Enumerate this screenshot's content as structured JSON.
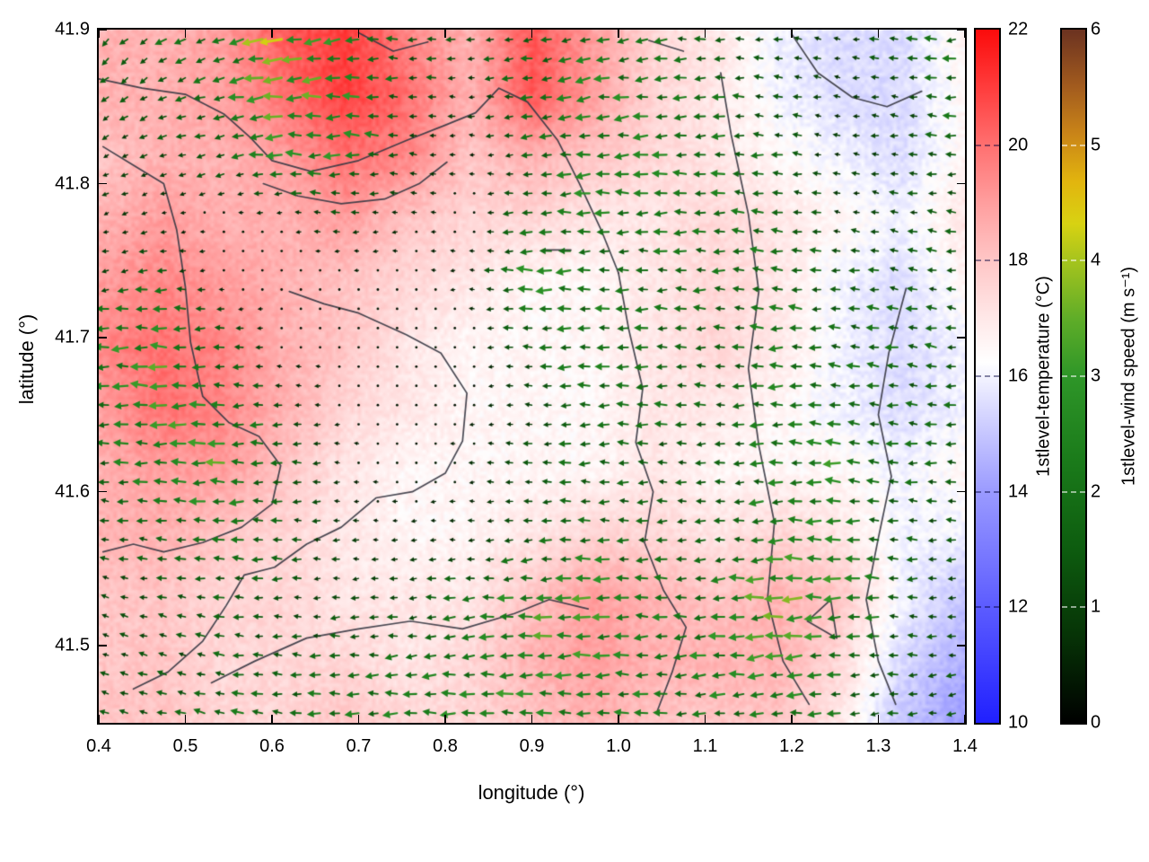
{
  "figure": {
    "background": "#ffffff",
    "boundary_color": "#3a3a44"
  },
  "axes": {
    "xlabel": "longitude (°)",
    "ylabel": "latitude (°)",
    "x_ticks": [
      "0.4",
      "0.5",
      "0.6",
      "0.7",
      "0.8",
      "0.9",
      "1.0",
      "1.1",
      "1.2",
      "1.3",
      "1.4"
    ],
    "y_ticks": [
      "41.5",
      "41.6",
      "41.7",
      "41.8",
      "41.9"
    ],
    "xlim": [
      0.4,
      1.4
    ],
    "ylim": [
      41.45,
      41.9
    ]
  },
  "colorbars": [
    {
      "label": "1stlevel-temperature (°C)",
      "ticks": [
        "22",
        "20",
        "18",
        "16",
        "14",
        "12",
        "10"
      ],
      "min": 10,
      "max": 22,
      "stops": [
        [
          0,
          "#2020ff"
        ],
        [
          0.167,
          "#5c5cff"
        ],
        [
          0.333,
          "#9a9aff"
        ],
        [
          0.458,
          "#dcdcff"
        ],
        [
          0.52,
          "#ffffff"
        ],
        [
          0.583,
          "#ffe8e8"
        ],
        [
          0.667,
          "#ffc6c6"
        ],
        [
          0.75,
          "#ff9e9e"
        ],
        [
          0.833,
          "#ff7070"
        ],
        [
          0.917,
          "#ff3c3c"
        ],
        [
          1,
          "#fb0b0b"
        ]
      ]
    },
    {
      "label": "1stlevel-wind speed (m s⁻¹)",
      "ticks": [
        "6",
        "5",
        "4",
        "3",
        "2",
        "1",
        "0"
      ],
      "min": 0,
      "max": 6,
      "stops": [
        [
          0,
          "#000000"
        ],
        [
          0.125,
          "#063306"
        ],
        [
          0.25,
          "#0d5c0f"
        ],
        [
          0.375,
          "#1a7a1a"
        ],
        [
          0.5,
          "#2e9628"
        ],
        [
          0.583,
          "#5fad28"
        ],
        [
          0.667,
          "#a6c41d"
        ],
        [
          0.72,
          "#d8d212"
        ],
        [
          0.78,
          "#e2b50e"
        ],
        [
          0.85,
          "#c98418"
        ],
        [
          0.92,
          "#a15a1e"
        ],
        [
          1,
          "#6b3220"
        ]
      ]
    }
  ],
  "chart_data": {
    "type": "heatmap",
    "title": "",
    "xlabel": "longitude (°)",
    "ylabel": "latitude (°)",
    "xlim": [
      0.4,
      1.4
    ],
    "ylim": [
      41.45,
      41.9
    ],
    "layers": [
      "1stlevel-temperature shaded field (°C)",
      "1stlevel-wind vectors colored by speed (m s⁻¹)",
      "boundary contour lines"
    ],
    "temperature_field": {
      "units": "°C",
      "range": [
        10,
        22
      ],
      "grid_lon_range": [
        0.4,
        1.4
      ],
      "grid_lat_rows_top_to_bottom": [
        41.9,
        41.45
      ],
      "values": [
        [
          18.5,
          18.5,
          19.0,
          20.5,
          21.0,
          19.5,
          18.5,
          20.5,
          19.0,
          17.5,
          17.0,
          16.0,
          15.5,
          15.5,
          16.5
        ],
        [
          18.5,
          18.5,
          19.0,
          20.0,
          21.0,
          20.0,
          18.5,
          20.5,
          19.0,
          17.5,
          17.0,
          16.0,
          15.5,
          15.5,
          16.5
        ],
        [
          18.0,
          18.5,
          18.5,
          19.0,
          20.0,
          19.5,
          18.0,
          18.5,
          18.0,
          17.5,
          17.0,
          16.5,
          16.0,
          15.5,
          16.5
        ],
        [
          18.5,
          19.0,
          18.5,
          18.5,
          19.0,
          18.0,
          17.5,
          17.5,
          17.0,
          17.0,
          17.5,
          17.0,
          16.5,
          16.0,
          17.0
        ],
        [
          19.0,
          19.5,
          19.0,
          18.5,
          18.0,
          17.5,
          17.0,
          16.5,
          16.5,
          17.0,
          17.5,
          17.0,
          16.0,
          15.5,
          16.5
        ],
        [
          19.5,
          20.0,
          19.5,
          18.5,
          18.0,
          17.0,
          16.5,
          16.5,
          16.5,
          17.0,
          17.5,
          17.0,
          16.0,
          15.5,
          16.0
        ],
        [
          19.0,
          20.0,
          19.5,
          18.5,
          17.5,
          17.0,
          16.5,
          16.5,
          16.5,
          17.0,
          17.0,
          16.5,
          16.0,
          15.5,
          16.0
        ],
        [
          18.5,
          19.0,
          19.0,
          18.0,
          17.0,
          16.5,
          16.5,
          16.5,
          16.5,
          17.0,
          16.5,
          16.5,
          16.5,
          16.0,
          16.5
        ],
        [
          18.5,
          18.5,
          18.0,
          17.5,
          17.0,
          16.5,
          16.5,
          17.0,
          17.5,
          17.5,
          17.0,
          17.5,
          17.0,
          16.0,
          16.0
        ],
        [
          18.0,
          18.0,
          17.5,
          17.5,
          17.0,
          17.0,
          17.0,
          18.0,
          19.0,
          18.5,
          18.0,
          18.5,
          18.0,
          16.0,
          15.0
        ],
        [
          18.0,
          18.0,
          17.5,
          17.5,
          17.5,
          17.0,
          17.5,
          18.5,
          19.0,
          18.5,
          18.5,
          18.5,
          17.5,
          15.5,
          14.5
        ],
        [
          18.0,
          18.0,
          17.5,
          17.5,
          18.0,
          17.5,
          17.5,
          18.0,
          18.5,
          18.0,
          18.0,
          18.0,
          17.0,
          15.0,
          14.0
        ]
      ]
    },
    "wind_field": {
      "speed_units": "m s⁻¹",
      "speed_range": [
        0,
        6
      ],
      "speed": [
        [
          1.5,
          1.8,
          2.0,
          4.0,
          2.5,
          1.5,
          1.2,
          1.5,
          2.0,
          1.8,
          1.5,
          1.2,
          0.8,
          1.5,
          1.8
        ],
        [
          1.2,
          1.5,
          2.0,
          3.0,
          2.8,
          1.5,
          0.8,
          2.0,
          2.5,
          2.0,
          1.8,
          1.2,
          0.8,
          1.2,
          2.0
        ],
        [
          0.8,
          1.0,
          1.5,
          2.5,
          2.5,
          1.2,
          0.5,
          1.5,
          2.5,
          2.2,
          2.0,
          1.5,
          0.8,
          1.0,
          1.8
        ],
        [
          0.8,
          0.5,
          0.3,
          0.5,
          1.0,
          0.5,
          0.3,
          1.8,
          2.2,
          2.0,
          2.0,
          1.8,
          1.0,
          1.2,
          1.5
        ],
        [
          1.2,
          1.5,
          0.3,
          0.3,
          0.3,
          0.3,
          0.5,
          2.5,
          2.0,
          1.8,
          1.8,
          2.0,
          1.5,
          1.5,
          1.2
        ],
        [
          2.0,
          3.0,
          1.5,
          0.3,
          0.3,
          0.3,
          0.3,
          1.5,
          2.2,
          1.8,
          1.5,
          2.0,
          1.8,
          1.8,
          1.5
        ],
        [
          1.8,
          3.0,
          2.5,
          1.2,
          0.3,
          0.3,
          0.3,
          1.0,
          2.0,
          1.8,
          1.5,
          2.2,
          2.0,
          1.5,
          1.8
        ],
        [
          1.5,
          2.5,
          2.8,
          1.5,
          0.5,
          0.3,
          0.5,
          1.2,
          1.8,
          1.5,
          1.5,
          2.0,
          2.5,
          1.8,
          1.5
        ],
        [
          1.2,
          1.5,
          2.0,
          1.5,
          0.8,
          0.5,
          0.8,
          1.5,
          1.8,
          1.5,
          1.5,
          2.5,
          2.2,
          1.5,
          1.2
        ],
        [
          1.0,
          1.2,
          1.5,
          1.2,
          1.0,
          1.2,
          1.8,
          2.5,
          2.8,
          2.0,
          2.2,
          3.0,
          2.8,
          1.5,
          1.0
        ],
        [
          1.0,
          1.2,
          1.5,
          1.5,
          1.5,
          1.8,
          2.2,
          2.8,
          2.5,
          2.2,
          2.5,
          2.8,
          2.0,
          1.5,
          1.2
        ],
        [
          1.2,
          1.5,
          1.8,
          2.0,
          2.0,
          2.2,
          2.5,
          2.5,
          2.2,
          2.0,
          2.0,
          2.2,
          1.8,
          1.5,
          1.5
        ]
      ],
      "direction_deg_math": [
        [
          225,
          215,
          200,
          190,
          185,
          180,
          180,
          190,
          195,
          185,
          180,
          175,
          170,
          180,
          185
        ],
        [
          220,
          210,
          195,
          185,
          180,
          180,
          175,
          185,
          190,
          185,
          180,
          175,
          170,
          175,
          180
        ],
        [
          210,
          200,
          190,
          180,
          180,
          175,
          180,
          185,
          185,
          180,
          180,
          175,
          170,
          175,
          180
        ],
        [
          200,
          195,
          185,
          180,
          180,
          180,
          180,
          185,
          180,
          180,
          180,
          175,
          170,
          170,
          175
        ],
        [
          190,
          185,
          180,
          180,
          180,
          180,
          180,
          180,
          180,
          180,
          180,
          175,
          175,
          170,
          175
        ],
        [
          185,
          180,
          180,
          180,
          180,
          180,
          180,
          180,
          180,
          180,
          180,
          180,
          175,
          170,
          175
        ],
        [
          180,
          180,
          180,
          180,
          180,
          180,
          180,
          180,
          180,
          180,
          180,
          180,
          175,
          175,
          180
        ],
        [
          175,
          180,
          180,
          180,
          180,
          180,
          180,
          180,
          180,
          180,
          185,
          180,
          175,
          175,
          180
        ],
        [
          170,
          175,
          180,
          180,
          180,
          185,
          185,
          185,
          180,
          180,
          185,
          180,
          180,
          175,
          180
        ],
        [
          165,
          170,
          175,
          180,
          185,
          185,
          185,
          185,
          180,
          180,
          185,
          185,
          180,
          180,
          185
        ],
        [
          160,
          165,
          170,
          175,
          180,
          185,
          185,
          180,
          180,
          180,
          185,
          185,
          185,
          180,
          185
        ],
        [
          160,
          165,
          170,
          175,
          180,
          180,
          180,
          180,
          180,
          180,
          185,
          185,
          185,
          185,
          190
        ]
      ]
    },
    "boundaries": [
      [
        [
          0.4,
          41.868
        ],
        [
          0.45,
          41.862
        ],
        [
          0.5,
          41.858
        ],
        [
          0.545,
          41.845
        ],
        [
          0.575,
          41.83
        ],
        [
          0.6,
          41.815
        ],
        [
          0.645,
          41.808
        ],
        [
          0.7,
          41.815
        ],
        [
          0.755,
          41.828
        ],
        [
          0.8,
          41.838
        ],
        [
          0.835,
          41.846
        ],
        [
          0.862,
          41.862
        ],
        [
          0.895,
          41.853
        ],
        [
          0.93,
          41.828
        ],
        [
          0.955,
          41.8
        ],
        [
          0.98,
          41.77
        ],
        [
          1.0,
          41.742
        ]
      ],
      [
        [
          1.0,
          41.742
        ],
        [
          1.012,
          41.705
        ],
        [
          1.028,
          41.667
        ],
        [
          1.02,
          41.632
        ],
        [
          1.04,
          41.6
        ],
        [
          1.03,
          41.567
        ],
        [
          1.052,
          41.536
        ],
        [
          1.078,
          41.512
        ],
        [
          1.062,
          41.483
        ],
        [
          1.045,
          41.458
        ]
      ],
      [
        [
          0.405,
          41.824
        ],
        [
          0.44,
          41.812
        ],
        [
          0.475,
          41.8
        ],
        [
          0.49,
          41.77
        ],
        [
          0.5,
          41.733
        ],
        [
          0.506,
          41.697
        ],
        [
          0.52,
          41.662
        ],
        [
          0.55,
          41.645
        ],
        [
          0.585,
          41.636
        ],
        [
          0.61,
          41.617
        ],
        [
          0.6,
          41.592
        ],
        [
          0.565,
          41.577
        ],
        [
          0.52,
          41.567
        ],
        [
          0.475,
          41.561
        ],
        [
          0.44,
          41.566
        ],
        [
          0.405,
          41.561
        ]
      ],
      [
        [
          0.59,
          41.8
        ],
        [
          0.63,
          41.792
        ],
        [
          0.68,
          41.787
        ],
        [
          0.73,
          41.79
        ],
        [
          0.77,
          41.8
        ],
        [
          0.802,
          41.814
        ]
      ],
      [
        [
          0.62,
          41.73
        ],
        [
          0.66,
          41.722
        ],
        [
          0.7,
          41.716
        ],
        [
          0.755,
          41.702
        ],
        [
          0.795,
          41.69
        ],
        [
          0.825,
          41.664
        ],
        [
          0.82,
          41.633
        ],
        [
          0.8,
          41.612
        ],
        [
          0.762,
          41.6
        ],
        [
          0.72,
          41.596
        ],
        [
          0.68,
          41.577
        ],
        [
          0.64,
          41.566
        ],
        [
          0.603,
          41.551
        ],
        [
          0.568,
          41.546
        ],
        [
          0.547,
          41.526
        ],
        [
          0.52,
          41.503
        ],
        [
          0.48,
          41.483
        ],
        [
          0.44,
          41.472
        ]
      ],
      [
        [
          0.53,
          41.476
        ],
        [
          0.58,
          41.49
        ],
        [
          0.64,
          41.505
        ],
        [
          0.7,
          41.511
        ],
        [
          0.76,
          41.516
        ],
        [
          0.82,
          41.511
        ],
        [
          0.88,
          41.521
        ],
        [
          0.92,
          41.53
        ],
        [
          0.965,
          41.524
        ]
      ],
      [
        [
          1.118,
          41.872
        ],
        [
          1.13,
          41.832
        ],
        [
          1.15,
          41.78
        ],
        [
          1.162,
          41.73
        ],
        [
          1.15,
          41.68
        ],
        [
          1.162,
          41.63
        ],
        [
          1.18,
          41.58
        ],
        [
          1.172,
          41.53
        ],
        [
          1.19,
          41.49
        ],
        [
          1.22,
          41.462
        ]
      ],
      [
        [
          1.332,
          41.732
        ],
        [
          1.312,
          41.69
        ],
        [
          1.3,
          41.65
        ],
        [
          1.315,
          41.61
        ],
        [
          1.3,
          41.57
        ],
        [
          1.286,
          41.53
        ],
        [
          1.3,
          41.49
        ],
        [
          1.32,
          41.462
        ]
      ],
      [
        [
          1.2,
          41.897
        ],
        [
          1.23,
          41.872
        ],
        [
          1.27,
          41.856
        ],
        [
          1.31,
          41.85
        ],
        [
          1.35,
          41.86
        ]
      ],
      [
        [
          0.7,
          41.898
        ],
        [
          0.74,
          41.886
        ],
        [
          0.78,
          41.892
        ]
      ],
      [
        [
          1.035,
          41.893
        ],
        [
          1.075,
          41.886
        ]
      ],
      [
        [
          1.218,
          41.516
        ],
        [
          1.245,
          41.53
        ],
        [
          1.252,
          41.505
        ],
        [
          1.218,
          41.516
        ]
      ],
      [
        [
          0.915,
          41.757
        ],
        [
          0.945,
          41.757
        ]
      ]
    ]
  }
}
